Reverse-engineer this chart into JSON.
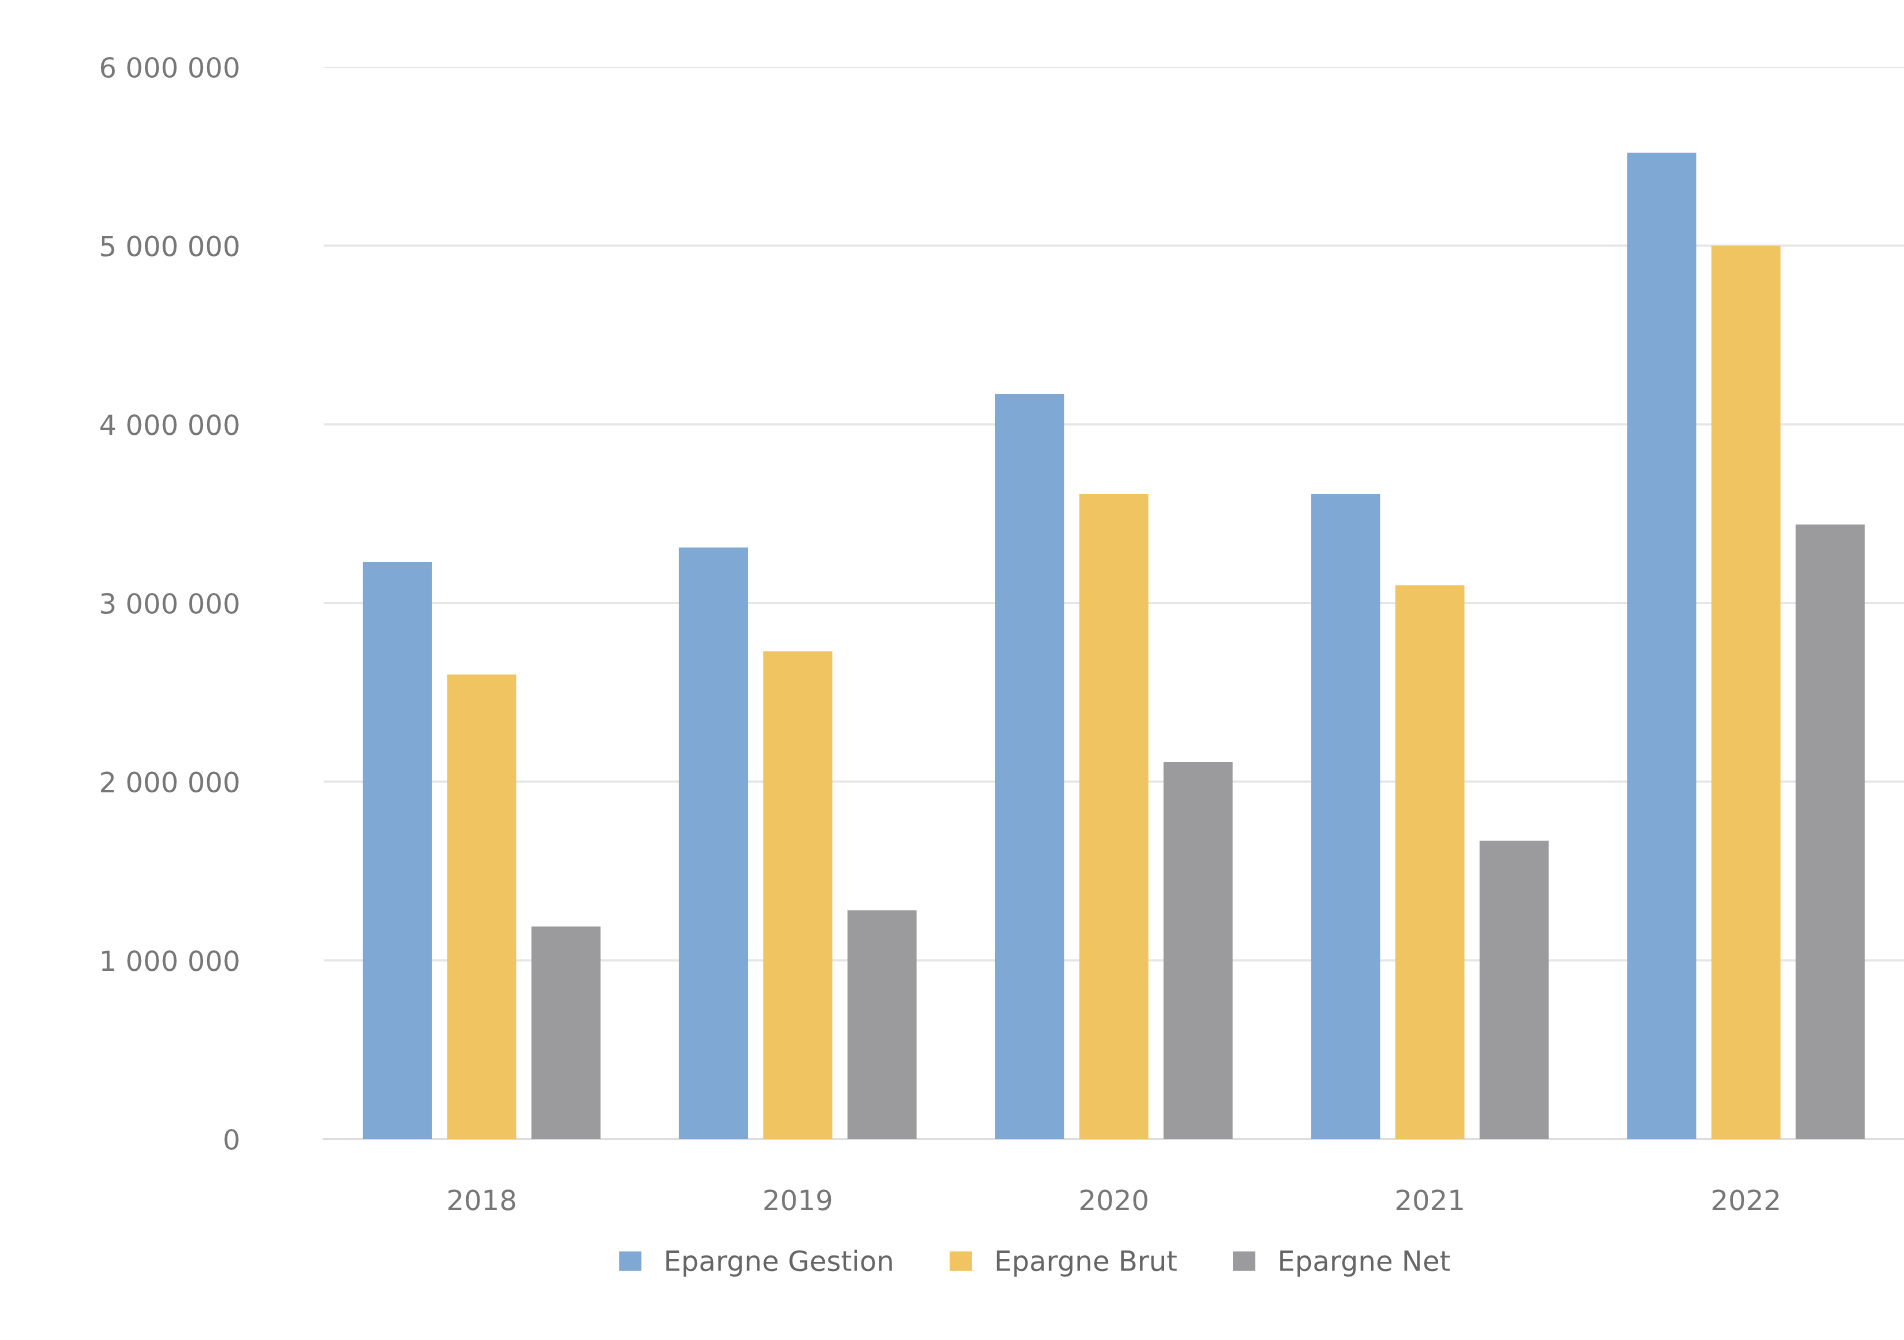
{
  "chart_data": {
    "type": "bar",
    "categories": [
      "2018",
      "2019",
      "2020",
      "2021",
      "2022"
    ],
    "series": [
      {
        "name": "Epargne Gestion",
        "color": "#7fa9d4",
        "values": [
          3230000,
          3310000,
          4170000,
          3610000,
          5520000
        ]
      },
      {
        "name": "Epargne Brut",
        "color": "#f0c460",
        "values": [
          2600000,
          2730000,
          3610000,
          3100000,
          5000000
        ]
      },
      {
        "name": "Epargne Net",
        "color": "#9b9b9d",
        "values": [
          1190000,
          1280000,
          2110000,
          1670000,
          3440000
        ]
      }
    ],
    "ylim": [
      0,
      6000000
    ],
    "yticks": [
      {
        "value": 0,
        "label": "0"
      },
      {
        "value": 1000000,
        "label": "1 000 000"
      },
      {
        "value": 2000000,
        "label": "2 000 000"
      },
      {
        "value": 3000000,
        "label": "3 000 000"
      },
      {
        "value": 4000000,
        "label": "4 000 000"
      },
      {
        "value": 5000000,
        "label": "5 000 000"
      },
      {
        "value": 6000000,
        "label": "6 000 000"
      }
    ],
    "grid": "y",
    "legend": "bottom"
  }
}
